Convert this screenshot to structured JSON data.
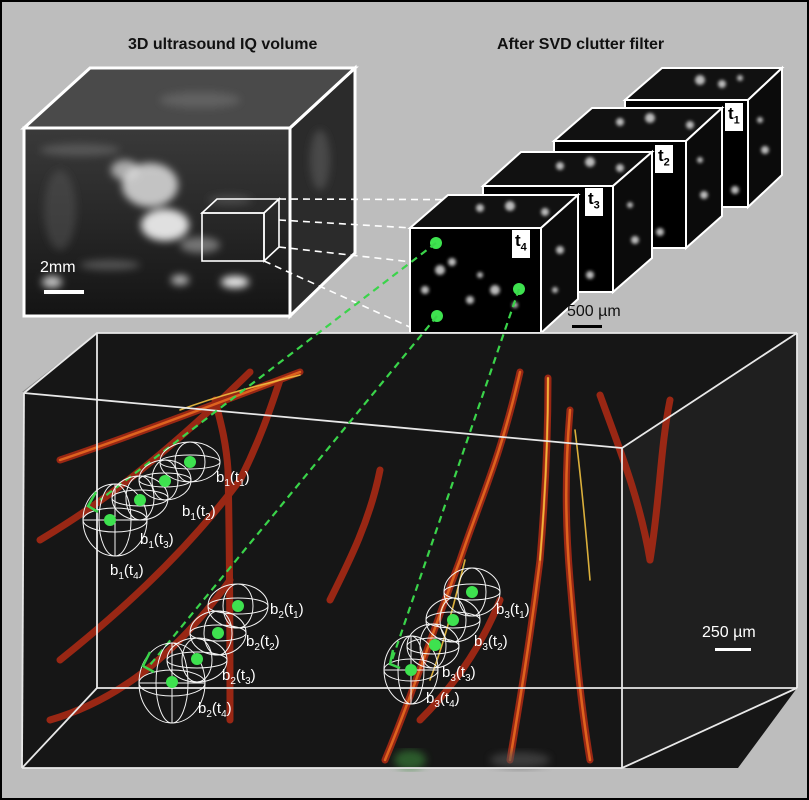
{
  "titles": {
    "left": "3D ultrasound IQ volume",
    "right": "After SVD clutter filter"
  },
  "scale_bars": {
    "iq_volume": "2mm",
    "filtered": "500 µm",
    "vessels": "250 µm"
  },
  "time_frames": [
    {
      "base": "t",
      "sub": "1"
    },
    {
      "base": "t",
      "sub": "2"
    },
    {
      "base": "t",
      "sub": "3"
    },
    {
      "base": "t",
      "sub": "4"
    }
  ],
  "bubble_labels": [
    {
      "b": "b",
      "bsub": "1",
      "t": "t",
      "tsub": "1"
    },
    {
      "b": "b",
      "bsub": "1",
      "t": "t",
      "tsub": "2"
    },
    {
      "b": "b",
      "bsub": "1",
      "t": "t",
      "tsub": "3"
    },
    {
      "b": "b",
      "bsub": "1",
      "t": "t",
      "tsub": "4"
    },
    {
      "b": "b",
      "bsub": "2",
      "t": "t",
      "tsub": "1"
    },
    {
      "b": "b",
      "bsub": "2",
      "t": "t",
      "tsub": "2"
    },
    {
      "b": "b",
      "bsub": "2",
      "t": "t",
      "tsub": "3"
    },
    {
      "b": "b",
      "bsub": "2",
      "t": "t",
      "tsub": "4"
    },
    {
      "b": "b",
      "bsub": "3",
      "t": "t",
      "tsub": "1"
    },
    {
      "b": "b",
      "bsub": "3",
      "t": "t",
      "tsub": "2"
    },
    {
      "b": "b",
      "bsub": "3",
      "t": "t",
      "tsub": "3"
    },
    {
      "b": "b",
      "bsub": "3",
      "t": "t",
      "tsub": "4"
    }
  ],
  "colors": {
    "background": "#bdbdbd",
    "tracking_line": "#3ad44a",
    "bubble_dot": "#3ee24f",
    "vessel": "#c8321a",
    "vessel_highlight": "#f0c040"
  }
}
